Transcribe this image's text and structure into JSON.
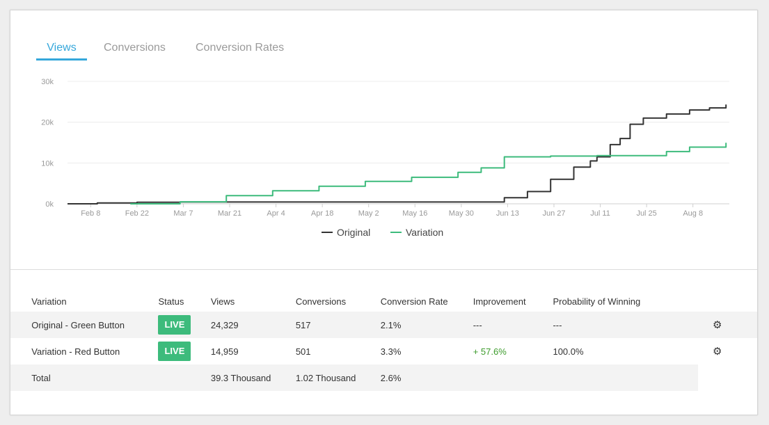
{
  "tabs": [
    {
      "label": "Views",
      "active": true
    },
    {
      "label": "Conversions",
      "active": false
    },
    {
      "label": "Conversion Rates",
      "active": false
    }
  ],
  "colors": {
    "accent": "#35a7db",
    "original_line": "#333333",
    "variation_line": "#3dbb7c",
    "live_badge": "#3dbb7c",
    "positive": "#3c9b2b"
  },
  "chart_data": {
    "type": "line",
    "x_tick_labels": [
      "Feb 8",
      "Feb 22",
      "Mar 7",
      "Mar 21",
      "Apr 4",
      "Apr 18",
      "May 2",
      "May 16",
      "May 30",
      "Jun 13",
      "Jun 27",
      "Jul 11",
      "Jul 25",
      "Aug 8"
    ],
    "y_tick_labels": [
      "0k",
      "10k",
      "20k",
      "30k"
    ],
    "ylim": [
      0,
      30000
    ],
    "grid": true,
    "legend_position": "bottom-center",
    "x_start": "2015-02-01",
    "x_end": "2015-08-20",
    "series": [
      {
        "name": "Original",
        "color": "#333333",
        "points": [
          [
            "2015-02-01",
            0
          ],
          [
            "2015-02-10",
            200
          ],
          [
            "2015-02-22",
            400
          ],
          [
            "2015-03-07",
            450
          ],
          [
            "2015-04-18",
            450
          ],
          [
            "2015-05-30",
            450
          ],
          [
            "2015-06-11",
            450
          ],
          [
            "2015-06-13",
            1500
          ],
          [
            "2015-06-20",
            3000
          ],
          [
            "2015-06-27",
            6000
          ],
          [
            "2015-07-04",
            9000
          ],
          [
            "2015-07-09",
            10500
          ],
          [
            "2015-07-11",
            11500
          ],
          [
            "2015-07-15",
            14500
          ],
          [
            "2015-07-18",
            16000
          ],
          [
            "2015-07-21",
            19500
          ],
          [
            "2015-07-25",
            21000
          ],
          [
            "2015-08-01",
            22000
          ],
          [
            "2015-08-08",
            23000
          ],
          [
            "2015-08-14",
            23500
          ],
          [
            "2015-08-19",
            24329
          ]
        ]
      },
      {
        "name": "Variation",
        "color": "#3dbb7c",
        "points": [
          [
            "2015-02-20",
            0
          ],
          [
            "2015-03-07",
            500
          ],
          [
            "2015-03-21",
            2000
          ],
          [
            "2015-04-04",
            3200
          ],
          [
            "2015-04-18",
            4300
          ],
          [
            "2015-05-02",
            5500
          ],
          [
            "2015-05-16",
            6500
          ],
          [
            "2015-05-30",
            7700
          ],
          [
            "2015-06-06",
            8800
          ],
          [
            "2015-06-13",
            11500
          ],
          [
            "2015-06-27",
            11700
          ],
          [
            "2015-07-11",
            11800
          ],
          [
            "2015-07-25",
            11800
          ],
          [
            "2015-08-01",
            12800
          ],
          [
            "2015-08-08",
            13900
          ],
          [
            "2015-08-19",
            14959
          ]
        ]
      }
    ]
  },
  "legend": [
    {
      "label": "Original"
    },
    {
      "label": "Variation"
    }
  ],
  "table": {
    "headers": [
      "Variation",
      "Status",
      "Views",
      "Conversions",
      "Conversion Rate",
      "Improvement",
      "Probability of Winning"
    ],
    "rows": [
      {
        "variation": "Original - Green Button",
        "status": "LIVE",
        "views": "24,329",
        "conversions": "517",
        "rate": "2.1%",
        "improvement": "---",
        "probability": "---"
      },
      {
        "variation": "Variation - Red Button",
        "status": "LIVE",
        "views": "14,959",
        "conversions": "501",
        "rate": "3.3%",
        "improvement": "+ 57.6%",
        "probability": "100.0%"
      }
    ],
    "total": {
      "label": "Total",
      "views": "39.3 Thousand",
      "conversions": "1.02 Thousand",
      "rate": "2.6%"
    }
  },
  "icons": {
    "row_settings": "gear-icon"
  }
}
